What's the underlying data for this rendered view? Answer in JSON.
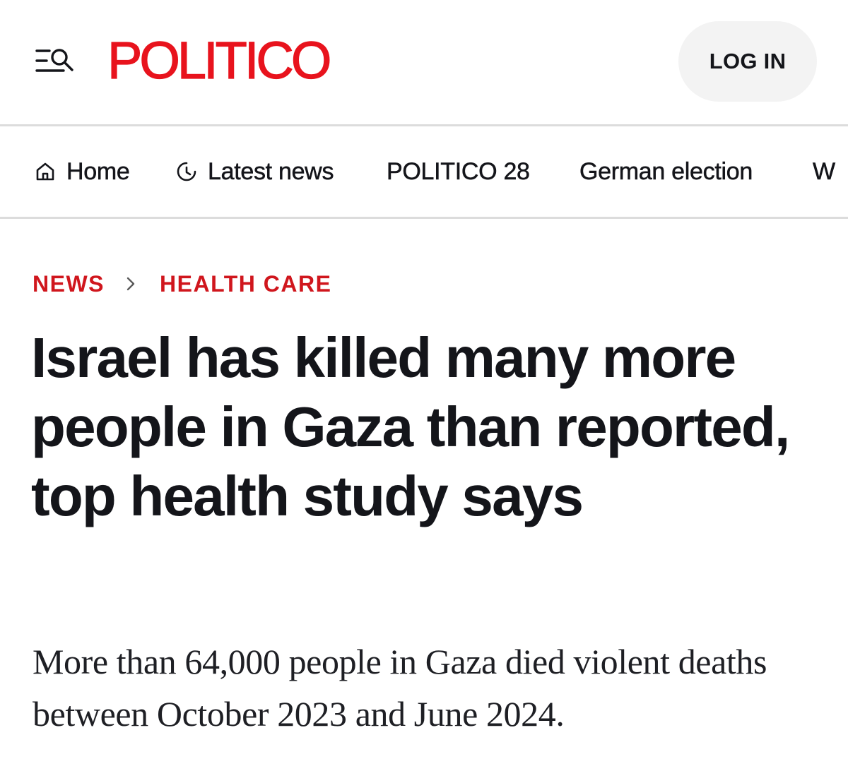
{
  "header": {
    "logo_text": "POLITICO",
    "login_label": "LOG IN",
    "menu_icon": "menu-search-icon",
    "brand_color": "#e8131d"
  },
  "nav": {
    "items": [
      {
        "label": "Home",
        "icon": "home-icon"
      },
      {
        "label": "Latest news",
        "icon": "clock-icon"
      },
      {
        "label": "POLITICO 28",
        "icon": null
      },
      {
        "label": "German election",
        "icon": null
      },
      {
        "label": "W",
        "icon": null
      }
    ]
  },
  "breadcrumb": {
    "items": [
      "NEWS",
      "HEALTH CARE"
    ],
    "separator_icon": "chevron-right-icon",
    "color": "#d0161d"
  },
  "article": {
    "headline": "Israel has killed many more people in Gaza than reported, top health study says",
    "dek": "More than 64,000 people in Gaza died violent deaths between October 2023 and June 2024."
  }
}
